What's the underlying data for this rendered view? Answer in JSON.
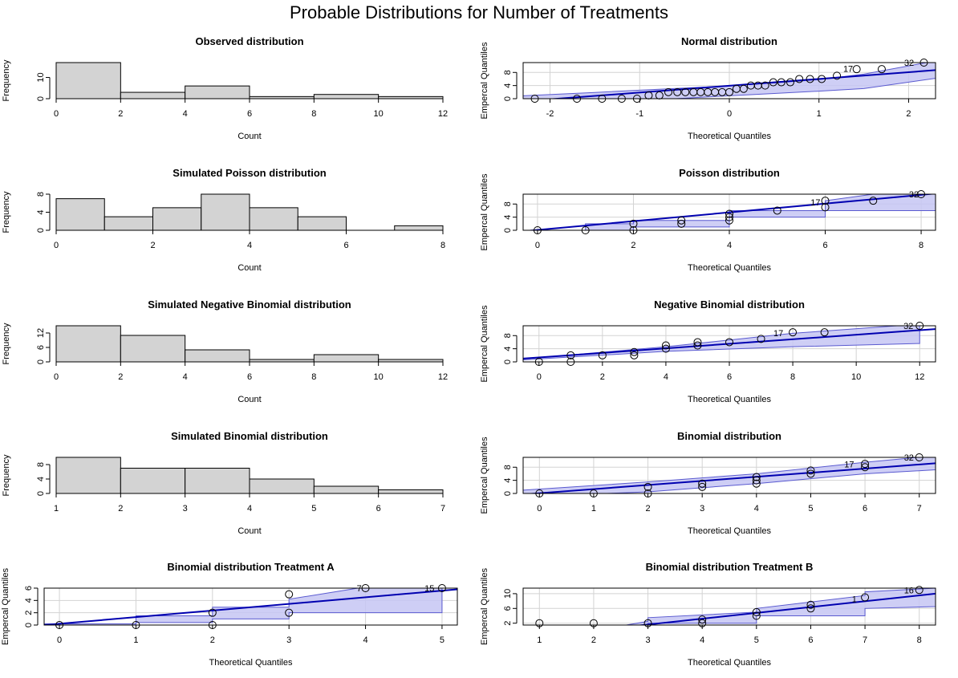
{
  "title": "Probable Distributions for Number of Treatments",
  "colors": {
    "hist_fill": "#d3d3d3",
    "band_fill": "#c5c5f3",
    "band_edge": "#5a5ad0",
    "line": "#0000b0",
    "grid": "#d3d3d3",
    "point": "#000000"
  },
  "chart_data": [
    {
      "type": "bar",
      "title": "Observed distribution",
      "xlabel": "Count",
      "ylabel": "Frequency",
      "bins": [
        [
          0,
          2
        ],
        [
          2,
          4
        ],
        [
          4,
          6
        ],
        [
          6,
          8
        ],
        [
          8,
          10
        ],
        [
          10,
          12
        ]
      ],
      "values": [
        17,
        3,
        6,
        1,
        2,
        1
      ],
      "xlim": [
        0,
        12
      ],
      "ylim": [
        0,
        17
      ],
      "xticks": [
        "0",
        "2",
        "4",
        "6",
        "8",
        "10",
        "12"
      ],
      "yticks": [
        "0",
        "10"
      ]
    },
    {
      "type": "scatter",
      "title": "Normal distribution",
      "xlabel": "Theoretical Quantiles",
      "ylabel": "Empercal Quantiles",
      "xlim": [
        -2.3,
        2.3
      ],
      "ylim": [
        0,
        11
      ],
      "xticks": [
        "-2",
        "-1",
        "0",
        "1",
        "2"
      ],
      "yticks": [
        "0",
        "4",
        "8"
      ],
      "x": [
        -2.17,
        -1.7,
        -1.42,
        -1.2,
        -1.03,
        -0.9,
        -0.78,
        -0.68,
        -0.58,
        -0.49,
        -0.4,
        -0.32,
        -0.24,
        -0.16,
        -0.08,
        0,
        0.08,
        0.16,
        0.24,
        0.32,
        0.4,
        0.49,
        0.58,
        0.68,
        0.78,
        0.9,
        1.03,
        1.2,
        1.42,
        1.7,
        2.17
      ],
      "y": [
        0,
        0,
        0,
        0,
        0,
        1,
        1,
        2,
        2,
        2,
        2,
        2,
        2,
        2,
        2,
        2,
        3,
        3,
        4,
        4,
        4,
        5,
        5,
        5,
        6,
        6,
        6,
        7,
        9,
        9,
        11
      ],
      "point_labels": [
        {
          "label": "17",
          "x": 1.38,
          "y": 9.2
        },
        {
          "label": "32",
          "x": 2.06,
          "y": 11
        }
      ],
      "band_lower": [
        [
          -2.3,
          -2.5
        ],
        [
          -1.5,
          -1.4
        ],
        [
          -1,
          -0.6
        ],
        [
          0,
          0.9
        ],
        [
          0.5,
          1.6
        ],
        [
          1,
          2.3
        ],
        [
          1.5,
          3.1
        ],
        [
          2.3,
          6.2
        ]
      ],
      "band_upper": [
        [
          -2.3,
          0.9
        ],
        [
          -1.5,
          1.9
        ],
        [
          -1,
          2.6
        ],
        [
          0,
          3.9
        ],
        [
          0.5,
          4.8
        ],
        [
          1,
          5.8
        ],
        [
          1.5,
          7.5
        ],
        [
          2.3,
          11.5
        ]
      ],
      "line": [
        [
          -2.3,
          -0.8
        ],
        [
          2.3,
          8.7
        ]
      ]
    },
    {
      "type": "bar",
      "title": "Simulated Poisson distribution",
      "xlabel": "Count",
      "ylabel": "Frequency",
      "bins": [
        [
          0,
          1
        ],
        [
          1,
          2
        ],
        [
          2,
          3
        ],
        [
          3,
          4
        ],
        [
          4,
          5
        ],
        [
          5,
          6
        ],
        [
          6,
          7
        ],
        [
          7,
          8
        ]
      ],
      "values": [
        7,
        3,
        5,
        8,
        5,
        3,
        0,
        1
      ],
      "xlim": [
        0,
        8
      ],
      "ylim": [
        0,
        8
      ],
      "xticks": [
        "0",
        "2",
        "4",
        "6",
        "8"
      ],
      "yticks": [
        "0",
        "4",
        "8"
      ]
    },
    {
      "type": "scatter",
      "title": "Poisson distribution",
      "xlabel": "Theoretical Quantiles",
      "ylabel": "Empercal Quantiles",
      "xlim": [
        -0.3,
        8.3
      ],
      "ylim": [
        0,
        11
      ],
      "xticks": [
        "0",
        "2",
        "4",
        "6",
        "8"
      ],
      "yticks": [
        "0",
        "4",
        "8"
      ],
      "x": [
        0,
        1,
        2,
        2,
        3,
        3,
        4,
        4,
        4,
        5,
        6,
        6,
        7,
        8
      ],
      "y": [
        0,
        0,
        0,
        2,
        2,
        3,
        3,
        4,
        5,
        6,
        7,
        9,
        9,
        11
      ],
      "point_labels": [
        {
          "label": "17",
          "x": 5.9,
          "y": 8.6
        },
        {
          "label": "32",
          "x": 7.95,
          "y": 11
        }
      ],
      "band_lower": [
        [
          -0.3,
          -1
        ],
        [
          1,
          -1
        ],
        [
          1,
          -0.5
        ],
        [
          2,
          -0.5
        ],
        [
          2,
          1
        ],
        [
          4,
          1
        ],
        [
          4,
          4
        ],
        [
          6,
          4
        ],
        [
          6,
          6
        ],
        [
          8,
          6
        ],
        [
          8.3,
          6
        ]
      ],
      "band_upper": [
        [
          -0.3,
          0
        ],
        [
          1,
          0
        ],
        [
          1,
          2
        ],
        [
          2,
          2
        ],
        [
          2,
          3
        ],
        [
          4,
          3
        ],
        [
          4,
          6
        ],
        [
          6,
          6
        ],
        [
          6,
          9
        ],
        [
          7,
          11
        ],
        [
          8.3,
          11
        ]
      ],
      "line": [
        [
          -0.3,
          -0.3
        ],
        [
          8.3,
          11.2
        ]
      ]
    },
    {
      "type": "bar",
      "title": "Simulated Negative Binomial distribution",
      "xlabel": "Count",
      "ylabel": "Frequency",
      "bins": [
        [
          0,
          2
        ],
        [
          2,
          4
        ],
        [
          4,
          6
        ],
        [
          6,
          8
        ],
        [
          8,
          10
        ],
        [
          10,
          12
        ]
      ],
      "values": [
        15,
        11,
        5,
        1,
        3,
        1
      ],
      "xlim": [
        0,
        12
      ],
      "ylim": [
        0,
        15
      ],
      "xticks": [
        "0",
        "2",
        "4",
        "6",
        "8",
        "10",
        "12"
      ],
      "yticks": [
        "0",
        "6",
        "12"
      ]
    },
    {
      "type": "scatter",
      "title": "Negative Binomial distribution",
      "xlabel": "Theoretical Quantiles",
      "ylabel": "Empercal Quantiles",
      "xlim": [
        -0.5,
        12.5
      ],
      "ylim": [
        0,
        11
      ],
      "xticks": [
        "0",
        "2",
        "4",
        "6",
        "8",
        "10",
        "12"
      ],
      "yticks": [
        "0",
        "4",
        "8"
      ],
      "x": [
        0,
        1,
        1,
        2,
        3,
        3,
        4,
        4,
        5,
        5,
        6,
        7,
        8,
        9,
        12
      ],
      "y": [
        0,
        0,
        2,
        2,
        2,
        3,
        4,
        5,
        5,
        6,
        6,
        7,
        9,
        9,
        11
      ],
      "point_labels": [
        {
          "label": "17",
          "x": 7.7,
          "y": 8.8
        },
        {
          "label": "32",
          "x": 11.8,
          "y": 11
        }
      ],
      "band_lower": [
        [
          -0.5,
          0.6
        ],
        [
          4,
          3.2
        ],
        [
          8,
          4.6
        ],
        [
          12,
          5.6
        ]
      ],
      "band_upper": [
        [
          -0.5,
          0.9
        ],
        [
          4,
          4.6
        ],
        [
          8,
          8.7
        ],
        [
          12,
          11.5
        ]
      ],
      "line": [
        [
          -0.5,
          1
        ],
        [
          12.5,
          10
        ]
      ]
    },
    {
      "type": "bar",
      "title": "Simulated Binomial distribution",
      "xlabel": "Count",
      "ylabel": "Frequency",
      "bins": [
        [
          1,
          2
        ],
        [
          2,
          3
        ],
        [
          3,
          4
        ],
        [
          4,
          5
        ],
        [
          5,
          6
        ],
        [
          6,
          7
        ]
      ],
      "values": [
        10,
        7,
        7,
        4,
        2,
        1
      ],
      "xlim": [
        1,
        7
      ],
      "ylim": [
        0,
        10
      ],
      "xticks": [
        "1",
        "2",
        "3",
        "4",
        "5",
        "6",
        "7"
      ],
      "yticks": [
        "0",
        "4",
        "8"
      ]
    },
    {
      "type": "scatter",
      "title": "Binomial distribution",
      "xlabel": "Theoretical Quantiles",
      "ylabel": "Empercal Quantiles",
      "xlim": [
        -0.3,
        7.3
      ],
      "ylim": [
        0,
        11
      ],
      "xticks": [
        "0",
        "1",
        "2",
        "3",
        "4",
        "5",
        "6",
        "7"
      ],
      "yticks": [
        "0",
        "4",
        "8"
      ],
      "x": [
        0,
        1,
        2,
        2,
        3,
        3,
        4,
        4,
        4,
        5,
        5,
        6,
        6,
        7
      ],
      "y": [
        0,
        0,
        0,
        2,
        2,
        3,
        3,
        4,
        5,
        6,
        7,
        8,
        9,
        11
      ],
      "point_labels": [
        {
          "label": "17",
          "x": 5.8,
          "y": 8.9
        },
        {
          "label": "32",
          "x": 6.9,
          "y": 11
        }
      ],
      "band_lower": [
        [
          -0.3,
          -1
        ],
        [
          2,
          0.5
        ],
        [
          4,
          3
        ],
        [
          6,
          6
        ],
        [
          7.3,
          7.2
        ]
      ],
      "band_upper": [
        [
          -0.3,
          1
        ],
        [
          2,
          3.5
        ],
        [
          4,
          6
        ],
        [
          6,
          9.5
        ],
        [
          7.3,
          11.5
        ]
      ],
      "line": [
        [
          -0.3,
          -0.3
        ],
        [
          7.3,
          9.2
        ]
      ]
    },
    {
      "type": "scatter",
      "title": "Binomial distribution Treatment A",
      "xlabel": "Theoretical Quantiles",
      "ylabel": "Empercal Quantiles",
      "xlim": [
        -0.2,
        5.2
      ],
      "ylim": [
        0,
        6
      ],
      "xticks": [
        "0",
        "1",
        "2",
        "3",
        "4",
        "5"
      ],
      "yticks": [
        "0",
        "2",
        "4",
        "6"
      ],
      "x": [
        0,
        1,
        2,
        2,
        3,
        3,
        4,
        5
      ],
      "y": [
        0,
        0,
        0,
        2,
        2,
        5,
        6,
        6
      ],
      "point_labels": [
        {
          "label": "7",
          "x": 3.95,
          "y": 6
        },
        {
          "label": "15",
          "x": 4.9,
          "y": 6
        }
      ],
      "band_lower": [
        [
          -0.2,
          -0.3
        ],
        [
          1,
          -0.3
        ],
        [
          1,
          0.4
        ],
        [
          2,
          0.4
        ],
        [
          2,
          1
        ],
        [
          3,
          1
        ],
        [
          3,
          2
        ],
        [
          5,
          2
        ]
      ],
      "band_upper": [
        [
          -0.2,
          0.2
        ],
        [
          1,
          0.2
        ],
        [
          1,
          1.5
        ],
        [
          2,
          1.5
        ],
        [
          2,
          2.9
        ],
        [
          3,
          2.9
        ],
        [
          3,
          4.2
        ],
        [
          4,
          6.2
        ],
        [
          5,
          6.2
        ]
      ],
      "line": [
        [
          -0.2,
          0
        ],
        [
          5.2,
          5.8
        ]
      ]
    },
    {
      "type": "scatter",
      "title": "Binomial distribution Treatment B",
      "xlabel": "Theoretical Quantiles",
      "ylabel": "Empercal Quantiles",
      "xlim": [
        0.7,
        8.3
      ],
      "ylim": [
        1.5,
        11.5
      ],
      "xticks": [
        "1",
        "2",
        "3",
        "4",
        "5",
        "6",
        "7",
        "8"
      ],
      "yticks": [
        "2",
        "6",
        "10"
      ],
      "x": [
        1,
        2,
        3,
        4,
        4,
        5,
        5,
        6,
        6,
        7,
        8
      ],
      "y": [
        2,
        2,
        2,
        2,
        3,
        4,
        5,
        6,
        7,
        9,
        11
      ],
      "point_labels": [
        {
          "label": "1",
          "x": 6.85,
          "y": 8.6
        },
        {
          "label": "16",
          "x": 7.9,
          "y": 11
        }
      ],
      "band_lower": [
        [
          2.6,
          1
        ],
        [
          3,
          1
        ],
        [
          3,
          2
        ],
        [
          5,
          2
        ],
        [
          5,
          4
        ],
        [
          7,
          4
        ],
        [
          7,
          6
        ],
        [
          8.3,
          6.5
        ]
      ],
      "band_upper": [
        [
          2.6,
          1.5
        ],
        [
          3,
          2.5
        ],
        [
          3,
          3.5
        ],
        [
          5,
          5
        ],
        [
          5,
          6
        ],
        [
          7,
          9.5
        ],
        [
          7,
          10.5
        ],
        [
          8.3,
          11.5
        ]
      ],
      "line": [
        [
          2.6,
          1
        ],
        [
          8.3,
          10
        ]
      ]
    }
  ]
}
